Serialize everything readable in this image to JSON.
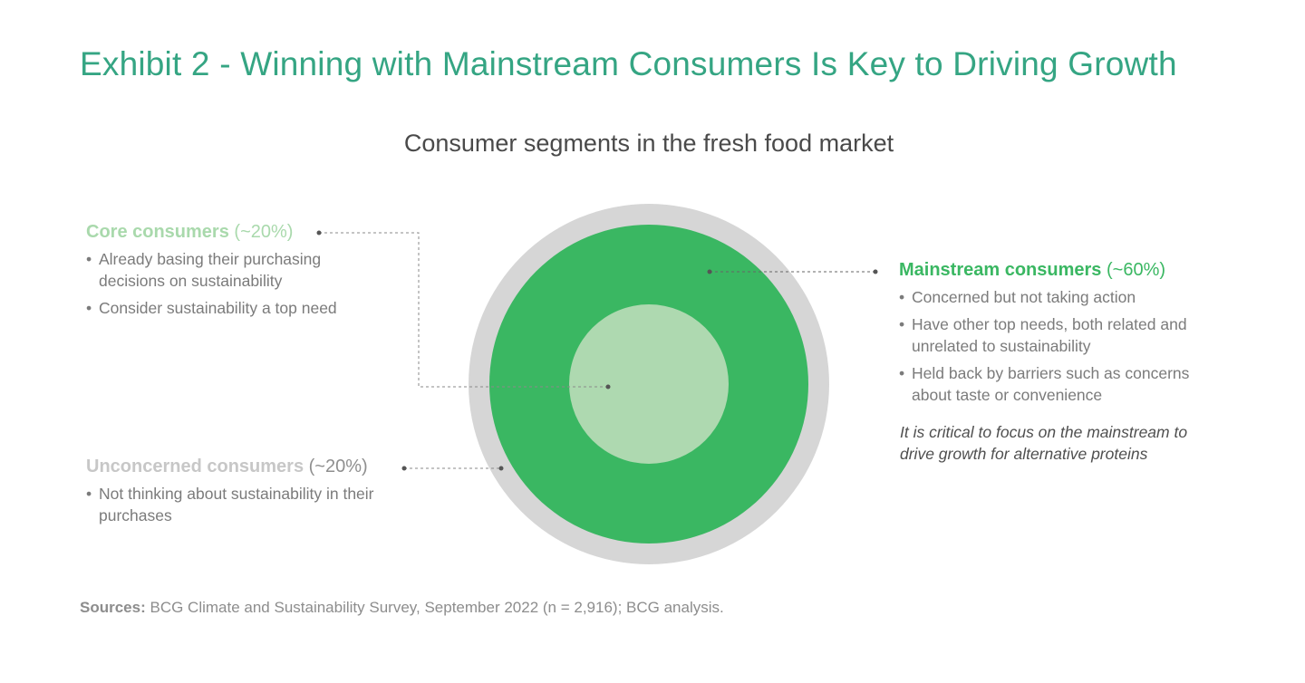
{
  "title": "Exhibit 2 - Winning with Mainstream Consumers Is Key to Driving Growth",
  "subtitle": "Consumer segments in the fresh food market",
  "segments": {
    "core": {
      "name": "Core consumers",
      "share": "(~20%)",
      "bullets": [
        "Already basing their purchasing decisions on sustainability",
        "Consider sustainability a top need"
      ]
    },
    "mainstream": {
      "name": "Mainstream consumers",
      "share": "(~60%)",
      "bullets": [
        "Concerned but not taking action",
        "Have other top needs, both related and unrelated to sustainability",
        "Held back by barriers such as concerns about taste or convenience"
      ]
    },
    "unconcerned": {
      "name": "Unconcerned consumers",
      "share": "(~20%)",
      "bullets": [
        "Not thinking about sustainability in their purchases"
      ]
    }
  },
  "note": "It is critical to focus on the mainstream to drive growth for alternative proteins",
  "sources": {
    "label": "Sources:",
    "text": "BCG Climate and Sustainability Survey, September 2022 (n = 2,916); BCG analysis."
  },
  "colors": {
    "outer_ring": "#d6d6d6",
    "mainstream": "#3ab762",
    "core": "#aed9b0",
    "title": "#35a583"
  }
}
